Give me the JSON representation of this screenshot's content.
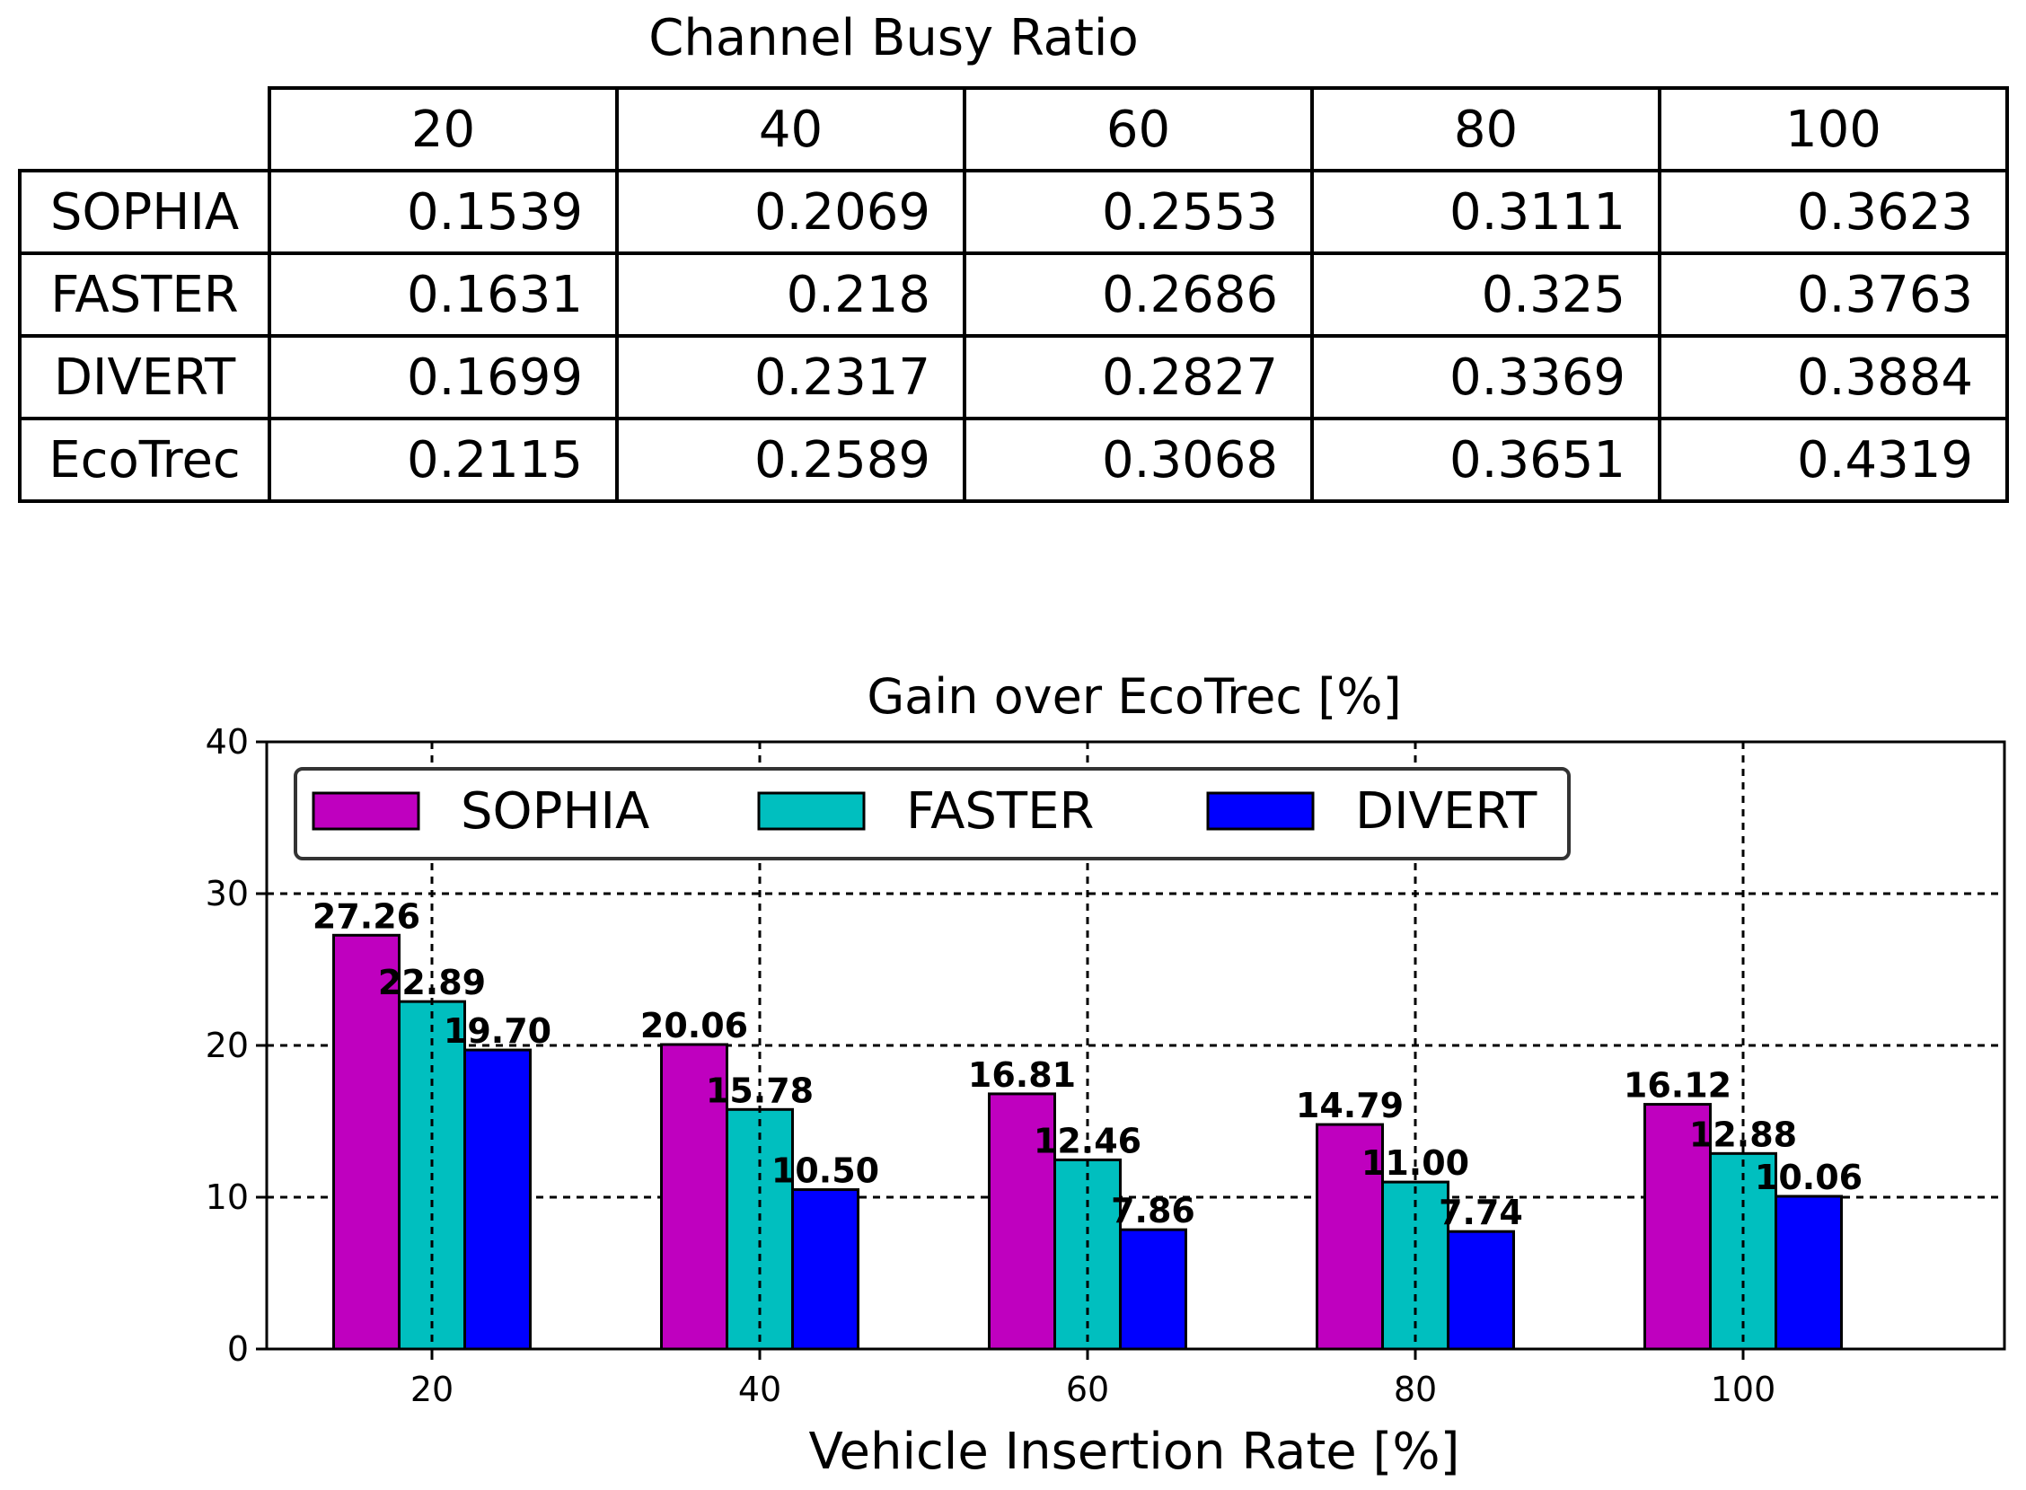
{
  "table": {
    "title": "Channel Busy Ratio",
    "columns": [
      "20",
      "40",
      "60",
      "80",
      "100"
    ],
    "rows": [
      {
        "label": "SOPHIA",
        "values": [
          "0.1539",
          "0.2069",
          "0.2553",
          "0.3111",
          "0.3623"
        ]
      },
      {
        "label": "FASTER",
        "values": [
          "0.1631",
          "0.218",
          "0.2686",
          "0.325",
          "0.3763"
        ]
      },
      {
        "label": "DIVERT",
        "values": [
          "0.1699",
          "0.2317",
          "0.2827",
          "0.3369",
          "0.3884"
        ]
      },
      {
        "label": "EcoTrec",
        "values": [
          "0.2115",
          "0.2589",
          "0.3068",
          "0.3651",
          "0.4319"
        ]
      }
    ]
  },
  "chart_data": {
    "type": "bar",
    "title": "Gain over EcoTrec [%]",
    "xlabel": "Vehicle Insertion Rate [%]",
    "ylabel": "",
    "categories": [
      "20",
      "40",
      "60",
      "80",
      "100"
    ],
    "ylim": [
      0,
      40
    ],
    "yticks": [
      "0",
      "10",
      "20",
      "30",
      "40"
    ],
    "grid": true,
    "legend_position": "top-left",
    "series": [
      {
        "name": "SOPHIA",
        "color": "#bf00bf",
        "values": [
          27.26,
          20.06,
          16.81,
          14.79,
          16.12
        ],
        "labels": [
          "27.26",
          "20.06",
          "16.81",
          "14.79",
          "16.12"
        ]
      },
      {
        "name": "FASTER",
        "color": "#00bfbf",
        "values": [
          22.89,
          15.78,
          12.46,
          11.0,
          12.88
        ],
        "labels": [
          "22.89",
          "15.78",
          "12.46",
          "11.00",
          "12.88"
        ]
      },
      {
        "name": "DIVERT",
        "color": "#0000ff",
        "values": [
          19.7,
          10.5,
          7.86,
          7.74,
          10.06
        ],
        "labels": [
          "19.70",
          "10.50",
          "7.86",
          "7.74",
          "10.06"
        ]
      }
    ]
  }
}
